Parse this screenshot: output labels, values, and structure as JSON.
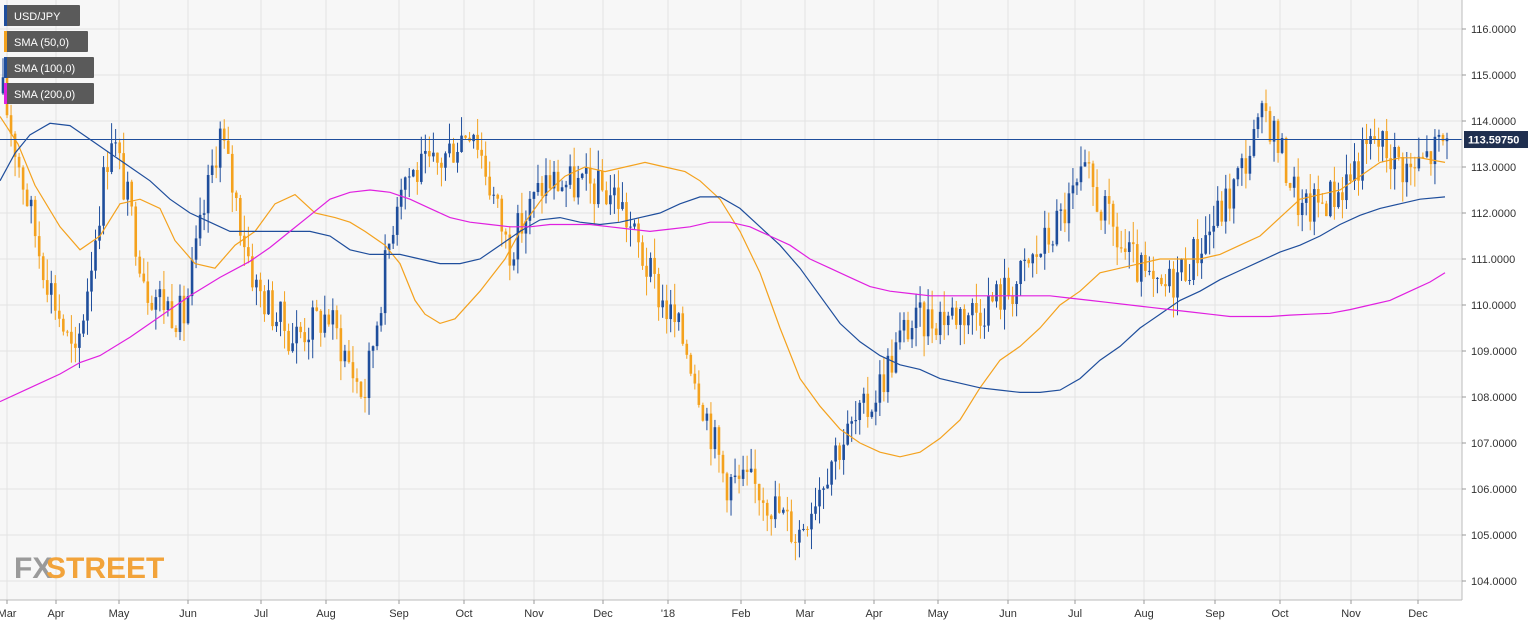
{
  "legend": [
    {
      "label": "USD/JPY",
      "color": "#1f4e9c"
    },
    {
      "label": "SMA (50,0)",
      "color": "#f4a21e"
    },
    {
      "label": "SMA (100,0)",
      "color": "#1f4e9c"
    },
    {
      "label": "SMA (200,0)",
      "color": "#e020e0"
    }
  ],
  "watermark": {
    "part1": "FX",
    "part2": "STREET"
  },
  "last_price": {
    "label": "113.59750",
    "value": 113.5975
  },
  "colors": {
    "background": "#f7f7f7",
    "grid": "#e3e3e3",
    "up_candle": "#1f4e9c",
    "down_candle": "#f4a21e",
    "sma50": "#f4a21e",
    "sma100": "#1f4e9c",
    "sma200": "#e020e0",
    "price_line": "#1f4e9c",
    "watermark1": "#9a9a9a",
    "watermark2": "#f2a33a"
  },
  "chart_data": {
    "type": "candlestick",
    "title": "",
    "xlabel": "",
    "ylabel": "",
    "ylim": [
      103.6,
      116.6
    ],
    "y_ticks": [
      "104.0000",
      "105.0000",
      "106.0000",
      "107.0000",
      "108.0000",
      "109.0000",
      "110.0000",
      "111.0000",
      "112.0000",
      "113.0000",
      "114.0000",
      "115.0000",
      "116.0000"
    ],
    "x_ticks": [
      "Mar",
      "Apr",
      "May",
      "Jun",
      "Jul",
      "Aug",
      "Sep",
      "Oct",
      "Nov",
      "Dec",
      "'18",
      "Feb",
      "Mar",
      "Apr",
      "May",
      "Jun",
      "Jul",
      "Aug",
      "Sep",
      "Oct",
      "Nov",
      "Dec"
    ],
    "grid": true,
    "legend_position": "top-left",
    "price_anchors": [
      [
        "Mar",
        114.6
      ],
      [
        "Apr",
        111.2
      ],
      [
        "",
        108.7
      ],
      [
        "May",
        113.8
      ],
      [
        "Jun",
        110.4
      ],
      [
        "",
        109.7
      ],
      [
        "Jul",
        113.8
      ],
      [
        "Aug",
        110.4
      ],
      [
        "",
        109.3
      ],
      [
        "Sep",
        109.8
      ],
      [
        "",
        108.0
      ],
      [
        "Oct",
        112.8
      ],
      [
        "",
        113.0
      ],
      [
        "Nov",
        114.0
      ],
      [
        "",
        111.2
      ],
      [
        "Dec",
        112.7
      ],
      [
        "",
        112.6
      ],
      [
        "'18",
        112.4
      ],
      [
        "",
        110.5
      ],
      [
        "Feb",
        109.0
      ],
      [
        "",
        106.2
      ],
      [
        "Mar",
        106.0
      ],
      [
        "",
        105.0
      ],
      [
        "Apr",
        106.8
      ],
      [
        "",
        107.8
      ],
      [
        "May",
        109.5
      ],
      [
        "",
        109.8
      ],
      [
        "Jun",
        109.9
      ],
      [
        "",
        110.4
      ],
      [
        "Jul",
        111.5
      ],
      [
        "",
        112.8
      ],
      [
        "Aug",
        111.2
      ],
      [
        "",
        110.2
      ],
      [
        "Sep",
        111.1
      ],
      [
        "",
        112.4
      ],
      [
        "Oct",
        114.2
      ],
      [
        "",
        112.0
      ],
      [
        "Nov",
        112.5
      ],
      [
        "",
        113.6
      ],
      [
        "Dec",
        112.9
      ],
      [
        "",
        113.6
      ]
    ],
    "series": [
      {
        "name": "SMA (50,0)",
        "values": [
          [
            0,
            114.1
          ],
          [
            18,
            113.5
          ],
          [
            35,
            112.6
          ],
          [
            60,
            111.7
          ],
          [
            80,
            111.2
          ],
          [
            100,
            111.5
          ],
          [
            120,
            112.2
          ],
          [
            140,
            112.3
          ],
          [
            160,
            112.1
          ],
          [
            175,
            111.4
          ],
          [
            195,
            110.9
          ],
          [
            215,
            110.8
          ],
          [
            235,
            111.3
          ],
          [
            255,
            111.6
          ],
          [
            275,
            112.2
          ],
          [
            295,
            112.4
          ],
          [
            315,
            112.0
          ],
          [
            335,
            111.9
          ],
          [
            350,
            111.8
          ],
          [
            365,
            111.6
          ],
          [
            385,
            111.3
          ],
          [
            400,
            110.9
          ],
          [
            415,
            110.1
          ],
          [
            425,
            109.8
          ],
          [
            440,
            109.6
          ],
          [
            455,
            109.7
          ],
          [
            480,
            110.3
          ],
          [
            505,
            111.0
          ],
          [
            525,
            111.8
          ],
          [
            545,
            112.4
          ],
          [
            565,
            112.8
          ],
          [
            585,
            113.0
          ],
          [
            605,
            112.9
          ],
          [
            625,
            113.0
          ],
          [
            645,
            113.1
          ],
          [
            665,
            113.0
          ],
          [
            685,
            112.9
          ],
          [
            700,
            112.7
          ],
          [
            720,
            112.3
          ],
          [
            740,
            111.6
          ],
          [
            760,
            110.7
          ],
          [
            780,
            109.5
          ],
          [
            800,
            108.4
          ],
          [
            820,
            107.8
          ],
          [
            840,
            107.3
          ],
          [
            860,
            107.0
          ],
          [
            880,
            106.8
          ],
          [
            900,
            106.7
          ],
          [
            920,
            106.8
          ],
          [
            940,
            107.1
          ],
          [
            960,
            107.5
          ],
          [
            980,
            108.2
          ],
          [
            1000,
            108.8
          ],
          [
            1020,
            109.1
          ],
          [
            1040,
            109.5
          ],
          [
            1060,
            110.0
          ],
          [
            1080,
            110.3
          ],
          [
            1100,
            110.7
          ],
          [
            1120,
            110.8
          ],
          [
            1140,
            110.9
          ],
          [
            1160,
            111.0
          ],
          [
            1180,
            111.0
          ],
          [
            1200,
            111.0
          ],
          [
            1220,
            111.1
          ],
          [
            1240,
            111.3
          ],
          [
            1260,
            111.5
          ],
          [
            1280,
            111.9
          ],
          [
            1300,
            112.3
          ],
          [
            1320,
            112.4
          ],
          [
            1340,
            112.5
          ],
          [
            1360,
            112.8
          ],
          [
            1380,
            113.1
          ],
          [
            1400,
            113.2
          ],
          [
            1420,
            113.2
          ],
          [
            1445,
            113.1
          ]
        ]
      },
      {
        "name": "SMA (100,0)",
        "values": [
          [
            0,
            112.7
          ],
          [
            15,
            113.3
          ],
          [
            30,
            113.7
          ],
          [
            50,
            113.95
          ],
          [
            70,
            113.9
          ],
          [
            90,
            113.6
          ],
          [
            110,
            113.3
          ],
          [
            130,
            113.0
          ],
          [
            150,
            112.7
          ],
          [
            170,
            112.3
          ],
          [
            190,
            112.0
          ],
          [
            210,
            111.8
          ],
          [
            230,
            111.6
          ],
          [
            250,
            111.6
          ],
          [
            270,
            111.6
          ],
          [
            290,
            111.6
          ],
          [
            310,
            111.6
          ],
          [
            330,
            111.5
          ],
          [
            350,
            111.2
          ],
          [
            370,
            111.1
          ],
          [
            400,
            111.1
          ],
          [
            420,
            111.0
          ],
          [
            440,
            110.9
          ],
          [
            460,
            110.9
          ],
          [
            480,
            111.0
          ],
          [
            500,
            111.3
          ],
          [
            520,
            111.6
          ],
          [
            540,
            111.85
          ],
          [
            560,
            111.9
          ],
          [
            580,
            111.8
          ],
          [
            600,
            111.75
          ],
          [
            620,
            111.8
          ],
          [
            640,
            111.9
          ],
          [
            660,
            112.0
          ],
          [
            680,
            112.2
          ],
          [
            700,
            112.35
          ],
          [
            720,
            112.35
          ],
          [
            740,
            112.1
          ],
          [
            760,
            111.7
          ],
          [
            780,
            111.3
          ],
          [
            800,
            110.8
          ],
          [
            820,
            110.2
          ],
          [
            840,
            109.6
          ],
          [
            860,
            109.2
          ],
          [
            880,
            108.9
          ],
          [
            900,
            108.7
          ],
          [
            920,
            108.6
          ],
          [
            940,
            108.4
          ],
          [
            960,
            108.3
          ],
          [
            980,
            108.2
          ],
          [
            1000,
            108.15
          ],
          [
            1020,
            108.1
          ],
          [
            1040,
            108.1
          ],
          [
            1060,
            108.15
          ],
          [
            1080,
            108.4
          ],
          [
            1100,
            108.8
          ],
          [
            1120,
            109.1
          ],
          [
            1140,
            109.5
          ],
          [
            1160,
            109.8
          ],
          [
            1180,
            110.1
          ],
          [
            1200,
            110.3
          ],
          [
            1220,
            110.55
          ],
          [
            1240,
            110.75
          ],
          [
            1260,
            110.95
          ],
          [
            1280,
            111.15
          ],
          [
            1300,
            111.3
          ],
          [
            1320,
            111.5
          ],
          [
            1340,
            111.75
          ],
          [
            1360,
            111.95
          ],
          [
            1380,
            112.1
          ],
          [
            1400,
            112.2
          ],
          [
            1420,
            112.3
          ],
          [
            1445,
            112.35
          ]
        ]
      },
      {
        "name": "SMA (200,0)",
        "values": [
          [
            0,
            107.9
          ],
          [
            30,
            108.2
          ],
          [
            60,
            108.5
          ],
          [
            80,
            108.75
          ],
          [
            100,
            108.9
          ],
          [
            130,
            109.3
          ],
          [
            160,
            109.75
          ],
          [
            190,
            110.2
          ],
          [
            220,
            110.6
          ],
          [
            250,
            110.95
          ],
          [
            270,
            111.25
          ],
          [
            290,
            111.6
          ],
          [
            310,
            111.95
          ],
          [
            330,
            112.3
          ],
          [
            350,
            112.45
          ],
          [
            370,
            112.5
          ],
          [
            390,
            112.45
          ],
          [
            410,
            112.3
          ],
          [
            430,
            112.1
          ],
          [
            450,
            111.9
          ],
          [
            470,
            111.8
          ],
          [
            490,
            111.75
          ],
          [
            510,
            111.7
          ],
          [
            530,
            111.7
          ],
          [
            550,
            111.75
          ],
          [
            570,
            111.75
          ],
          [
            590,
            111.75
          ],
          [
            610,
            111.7
          ],
          [
            630,
            111.65
          ],
          [
            650,
            111.6
          ],
          [
            670,
            111.65
          ],
          [
            690,
            111.7
          ],
          [
            710,
            111.8
          ],
          [
            730,
            111.8
          ],
          [
            750,
            111.7
          ],
          [
            770,
            111.5
          ],
          [
            790,
            111.3
          ],
          [
            810,
            111.0
          ],
          [
            830,
            110.8
          ],
          [
            850,
            110.6
          ],
          [
            870,
            110.4
          ],
          [
            890,
            110.3
          ],
          [
            910,
            110.25
          ],
          [
            930,
            110.2
          ],
          [
            950,
            110.2
          ],
          [
            970,
            110.2
          ],
          [
            990,
            110.2
          ],
          [
            1010,
            110.2
          ],
          [
            1030,
            110.2
          ],
          [
            1050,
            110.2
          ],
          [
            1070,
            110.15
          ],
          [
            1090,
            110.1
          ],
          [
            1110,
            110.05
          ],
          [
            1130,
            110.0
          ],
          [
            1150,
            109.95
          ],
          [
            1170,
            109.9
          ],
          [
            1190,
            109.85
          ],
          [
            1210,
            109.8
          ],
          [
            1230,
            109.75
          ],
          [
            1250,
            109.75
          ],
          [
            1270,
            109.75
          ],
          [
            1290,
            109.78
          ],
          [
            1310,
            109.8
          ],
          [
            1330,
            109.82
          ],
          [
            1350,
            109.9
          ],
          [
            1370,
            110.0
          ],
          [
            1390,
            110.1
          ],
          [
            1410,
            110.3
          ],
          [
            1430,
            110.5
          ],
          [
            1445,
            110.7
          ]
        ]
      }
    ]
  }
}
